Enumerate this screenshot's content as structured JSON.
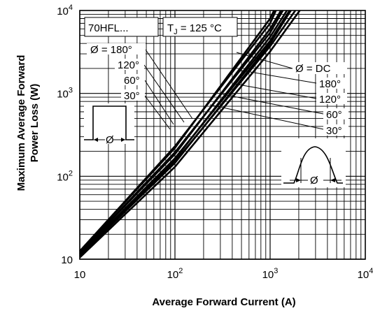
{
  "chart_data": {
    "type": "line",
    "x_scale": "log",
    "y_scale": "log",
    "xlim": [
      10,
      10000
    ],
    "ylim": [
      10,
      10000
    ],
    "xlabel": "Average Forward Current (A)",
    "ylabel_line1": "Maximum Average Forward",
    "ylabel_line2": "Power Loss (W)",
    "x_ticks": [
      {
        "value": 10,
        "base": "10",
        "exp": ""
      },
      {
        "value": 100,
        "base": "10",
        "exp": "2"
      },
      {
        "value": 1000,
        "base": "10",
        "exp": "3"
      },
      {
        "value": 10000,
        "base": "10",
        "exp": "4"
      }
    ],
    "y_ticks": [
      {
        "value": 10,
        "base": "10",
        "exp": ""
      },
      {
        "value": 100,
        "base": "10",
        "exp": "2"
      },
      {
        "value": 1000,
        "base": "10",
        "exp": "3"
      },
      {
        "value": 10000,
        "base": "10",
        "exp": "4"
      }
    ],
    "grid": true,
    "device_label": "70HFL...",
    "tj_label": {
      "prefix": "T",
      "sub": "J",
      "suffix": " = 125 °C"
    },
    "series": [
      {
        "name": "Ø = 180°",
        "x": [
          10,
          100,
          1000,
          1840
        ],
        "y": [
          11,
          150,
          3700,
          10000
        ]
      },
      {
        "name": "120°",
        "x": [
          10,
          100,
          1000,
          1600
        ],
        "y": [
          11.5,
          165,
          4300,
          10000
        ]
      },
      {
        "name": "60°",
        "x": [
          10,
          100,
          1000,
          1360
        ],
        "y": [
          12,
          195,
          5400,
          10000
        ]
      },
      {
        "name": "30°",
        "x": [
          10,
          100,
          1000,
          1150
        ],
        "y": [
          12.5,
          230,
          7000,
          10000
        ]
      },
      {
        "name": "Ø = DC",
        "x": [
          10,
          100,
          1000,
          2050
        ],
        "y": [
          10.5,
          130,
          3200,
          10000
        ]
      },
      {
        "name": "180°",
        "x": [
          10,
          100,
          1000,
          1650
        ],
        "y": [
          11,
          145,
          4000,
          10000
        ]
      },
      {
        "name": "120°",
        "x": [
          10,
          100,
          1000,
          1500
        ],
        "y": [
          11.5,
          160,
          4800,
          10000
        ]
      },
      {
        "name": "60°",
        "x": [
          10,
          100,
          1000,
          1300
        ],
        "y": [
          12,
          185,
          6000,
          10000
        ]
      },
      {
        "name": "30°",
        "x": [
          10,
          100,
          1000,
          1100
        ],
        "y": [
          12.5,
          220,
          8000,
          10000
        ]
      }
    ],
    "left_labels": [
      "Ø = 180°",
      "120°",
      "60°",
      "30°"
    ],
    "right_labels": [
      "Ø = DC",
      "180°",
      "120°",
      "60°",
      "30°"
    ],
    "waveform_label": "Ø"
  }
}
